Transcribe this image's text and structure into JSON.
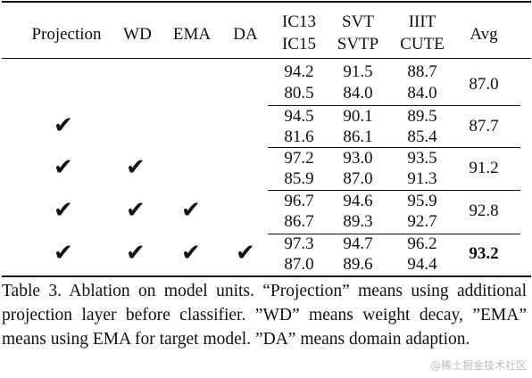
{
  "table": {
    "headers": {
      "projection": "Projection",
      "wd": "WD",
      "ema": "EMA",
      "da": "DA",
      "col1": [
        "IC13",
        "IC15"
      ],
      "col2": [
        "SVT",
        "SVTP"
      ],
      "col3": [
        "IIIT",
        "CUTE"
      ],
      "avg": "Avg"
    },
    "check_glyph": "✔",
    "rows": [
      {
        "checks": [
          false,
          false,
          false,
          false
        ],
        "top": [
          "94.2",
          "91.5",
          "88.7"
        ],
        "bottom": [
          "80.5",
          "84.0",
          "84.0"
        ],
        "avg": "87.0",
        "bold": false
      },
      {
        "checks": [
          true,
          false,
          false,
          false
        ],
        "top": [
          "94.5",
          "90.1",
          "89.5"
        ],
        "bottom": [
          "81.6",
          "86.1",
          "85.4"
        ],
        "avg": "87.7",
        "bold": false
      },
      {
        "checks": [
          true,
          true,
          false,
          false
        ],
        "top": [
          "97.2",
          "93.0",
          "93.5"
        ],
        "bottom": [
          "85.9",
          "87.0",
          "91.3"
        ],
        "avg": "91.2",
        "bold": false
      },
      {
        "checks": [
          true,
          true,
          true,
          false
        ],
        "top": [
          "96.7",
          "94.6",
          "95.9"
        ],
        "bottom": [
          "86.7",
          "89.3",
          "92.7"
        ],
        "avg": "92.8",
        "bold": false
      },
      {
        "checks": [
          true,
          true,
          true,
          true
        ],
        "top": [
          "97.3",
          "94.7",
          "96.2"
        ],
        "bottom": [
          "87.0",
          "89.6",
          "94.4"
        ],
        "avg": "93.2",
        "bold": true
      }
    ]
  },
  "caption": "Table 3. Ablation on model units. “Projection” means using additional projection layer before classifier. ”WD” means weight decay, ”EMA” means using EMA for target model. ”DA” means domain adaption.",
  "watermark": "@稀土掘金技术社区"
}
